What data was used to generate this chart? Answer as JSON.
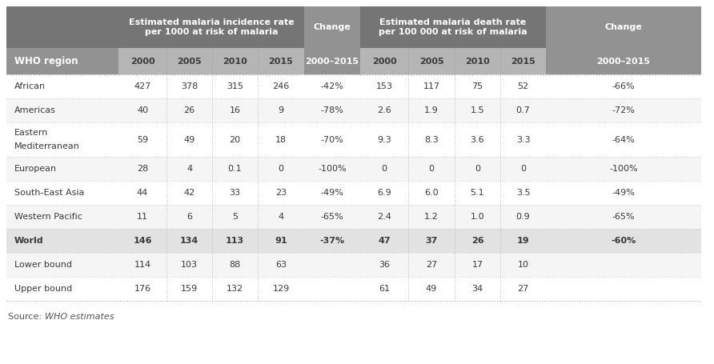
{
  "col_header_inc": "Estimated malaria incidence rate\nper 1000 at risk of malaria",
  "col_header_death": "Estimated malaria death rate\nper 100 000 at risk of malaria",
  "col_header_change": "Change",
  "sub_years": [
    "2000",
    "2005",
    "2010",
    "2015"
  ],
  "sub_change": "2000–2015",
  "who_region_label": "WHO region",
  "hdr_dark": "#757575",
  "hdr_medium": "#929292",
  "hdr_light": "#b5b5b5",
  "world_bg": "#e2e2e2",
  "row_bg": [
    "#ffffff",
    "#f5f5f5"
  ],
  "text_dark": "#3a3a3a",
  "text_header": "#ffffff",
  "rows": [
    {
      "region": "African",
      "inc": [
        "427",
        "378",
        "315",
        "246"
      ],
      "inc_ch": "-42%",
      "death": [
        "153",
        "117",
        "75",
        "52"
      ],
      "dth_ch": "-66%",
      "bold": false,
      "multiline": false
    },
    {
      "region": "Americas",
      "inc": [
        "40",
        "26",
        "16",
        "9"
      ],
      "inc_ch": "-78%",
      "death": [
        "2.6",
        "1.9",
        "1.5",
        "0.7"
      ],
      "dth_ch": "-72%",
      "bold": false,
      "multiline": false
    },
    {
      "region": "Eastern\nMediterranean",
      "inc": [
        "59",
        "49",
        "20",
        "18"
      ],
      "inc_ch": "-70%",
      "death": [
        "9.3",
        "8.3",
        "3.6",
        "3.3"
      ],
      "dth_ch": "-64%",
      "bold": false,
      "multiline": true
    },
    {
      "region": "European",
      "inc": [
        "28",
        "4",
        "0.1",
        "0"
      ],
      "inc_ch": "-100%",
      "death": [
        "0",
        "0",
        "0",
        "0"
      ],
      "dth_ch": "-100%",
      "bold": false,
      "multiline": false
    },
    {
      "region": "South-East Asia",
      "inc": [
        "44",
        "42",
        "33",
        "23"
      ],
      "inc_ch": "-49%",
      "death": [
        "6.9",
        "6.0",
        "5.1",
        "3.5"
      ],
      "dth_ch": "-49%",
      "bold": false,
      "multiline": false
    },
    {
      "region": "Western Pacific",
      "inc": [
        "11",
        "6",
        "5",
        "4"
      ],
      "inc_ch": "-65%",
      "death": [
        "2.4",
        "1.2",
        "1.0",
        "0.9"
      ],
      "dth_ch": "-65%",
      "bold": false,
      "multiline": false
    },
    {
      "region": "World",
      "inc": [
        "146",
        "134",
        "113",
        "91"
      ],
      "inc_ch": "-37%",
      "death": [
        "47",
        "37",
        "26",
        "19"
      ],
      "dth_ch": "-60%",
      "bold": true,
      "multiline": false
    },
    {
      "region": "Lower bound",
      "inc": [
        "114",
        "103",
        "88",
        "63"
      ],
      "inc_ch": "",
      "death": [
        "36",
        "27",
        "17",
        "10"
      ],
      "dth_ch": "",
      "bold": false,
      "multiline": false
    },
    {
      "region": "Upper bound",
      "inc": [
        "176",
        "159",
        "132",
        "129"
      ],
      "inc_ch": "",
      "death": [
        "61",
        "49",
        "34",
        "27"
      ],
      "dth_ch": "",
      "bold": false,
      "multiline": false
    }
  ],
  "source_prefix": "Source: ",
  "source_italic": "WHO estimates",
  "fig_w": 8.92,
  "fig_h": 4.55,
  "dpi": 100
}
